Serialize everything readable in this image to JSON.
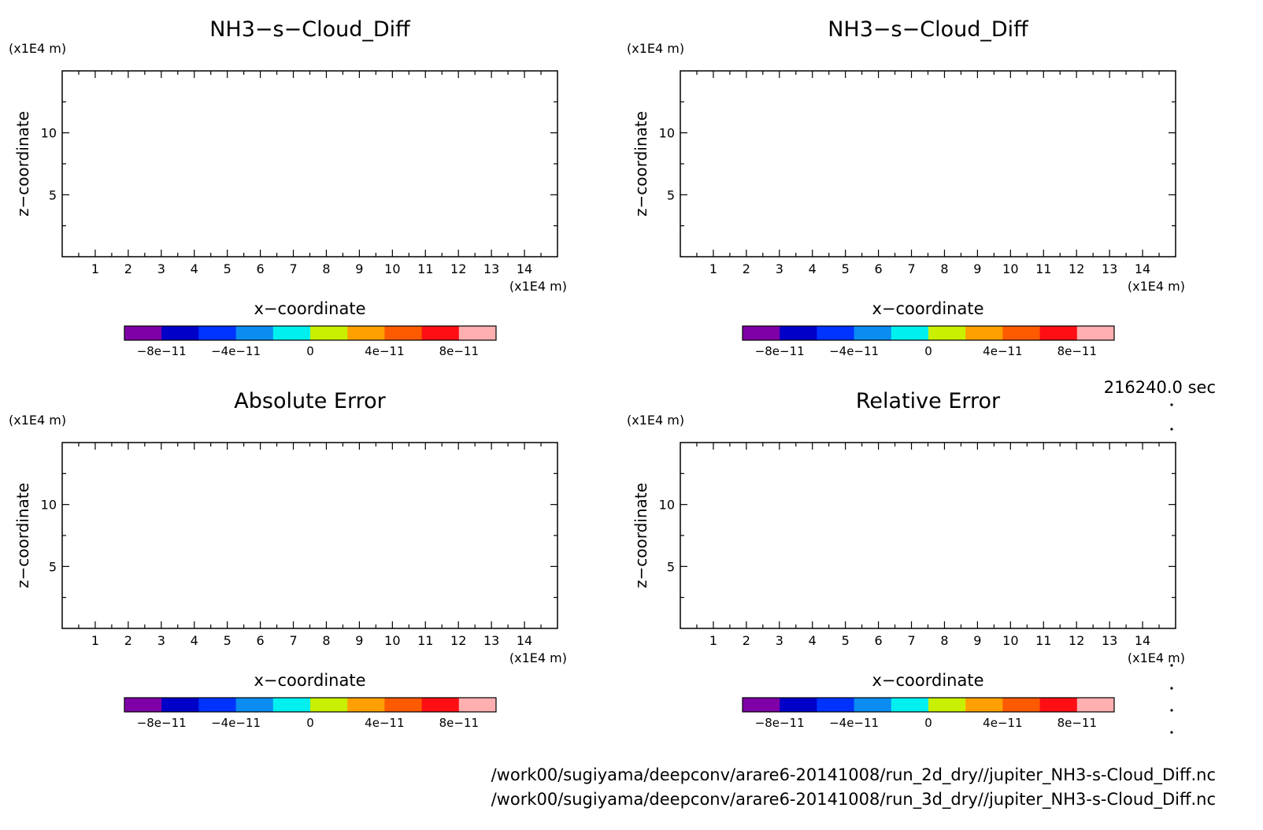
{
  "time_label": "216240.0 sec",
  "footer": {
    "line1": "/work00/sugiyama/deepconv/arare6-20141008/run_2d_dry//jupiter_NH3-s-Cloud_Diff.nc",
    "line2": "/work00/sugiyama/deepconv/arare6-20141008/run_3d_dry//jupiter_NH3-s-Cloud_Diff.nc"
  },
  "colorbar": {
    "colors": [
      "#7f00a6",
      "#0000c8",
      "#0033ff",
      "#0a8cf0",
      "#00f0f0",
      "#c8f000",
      "#ffa000",
      "#ff5a00",
      "#ff0f14",
      "#ffafaf"
    ],
    "tick_labels": [
      "-8e-11",
      "-4e-11",
      "0",
      "4e-11",
      "8e-11"
    ],
    "tick_values": [
      -8e-11,
      -4e-11,
      0,
      4e-11,
      8e-11
    ],
    "range": [
      -1e-10,
      1e-10
    ]
  },
  "chart_data": [
    {
      "type": "heatmap",
      "title": "NH3-s-Cloud_Diff",
      "xlabel": "x-coordinate",
      "ylabel": "z-coordinate",
      "x_unit": "(x1E4 m)",
      "y_unit": "(x1E4 m)",
      "xlim": [
        0,
        15
      ],
      "ylim": [
        0,
        15
      ],
      "x_ticks": [
        "1",
        "2",
        "3",
        "4",
        "5",
        "6",
        "7",
        "8",
        "9",
        "10",
        "11",
        "12",
        "13",
        "14"
      ],
      "y_ticks": [
        "5",
        "10"
      ],
      "values": []
    },
    {
      "type": "heatmap",
      "title": "NH3-s-Cloud_Diff",
      "xlabel": "x-coordinate",
      "ylabel": "z-coordinate",
      "x_unit": "(x1E4 m)",
      "y_unit": "(x1E4 m)",
      "xlim": [
        0,
        15
      ],
      "ylim": [
        0,
        15
      ],
      "x_ticks": [
        "1",
        "2",
        "3",
        "4",
        "5",
        "6",
        "7",
        "8",
        "9",
        "10",
        "11",
        "12",
        "13",
        "14"
      ],
      "y_ticks": [
        "5",
        "10"
      ],
      "values": []
    },
    {
      "type": "heatmap",
      "title": "Absolute Error",
      "xlabel": "x-coordinate",
      "ylabel": "z-coordinate",
      "x_unit": "(x1E4 m)",
      "y_unit": "(x1E4 m)",
      "xlim": [
        0,
        15
      ],
      "ylim": [
        0,
        15
      ],
      "x_ticks": [
        "1",
        "2",
        "3",
        "4",
        "5",
        "6",
        "7",
        "8",
        "9",
        "10",
        "11",
        "12",
        "13",
        "14"
      ],
      "y_ticks": [
        "5",
        "10"
      ],
      "values": []
    },
    {
      "type": "heatmap",
      "title": "Relative Error",
      "xlabel": "x-coordinate",
      "ylabel": "z-coordinate",
      "x_unit": "(x1E4 m)",
      "y_unit": "(x1E4 m)",
      "xlim": [
        0,
        15
      ],
      "ylim": [
        0,
        15
      ],
      "x_ticks": [
        "1",
        "2",
        "3",
        "4",
        "5",
        "6",
        "7",
        "8",
        "9",
        "10",
        "11",
        "12",
        "13",
        "14"
      ],
      "y_ticks": [
        "5",
        "10"
      ],
      "values": []
    }
  ]
}
